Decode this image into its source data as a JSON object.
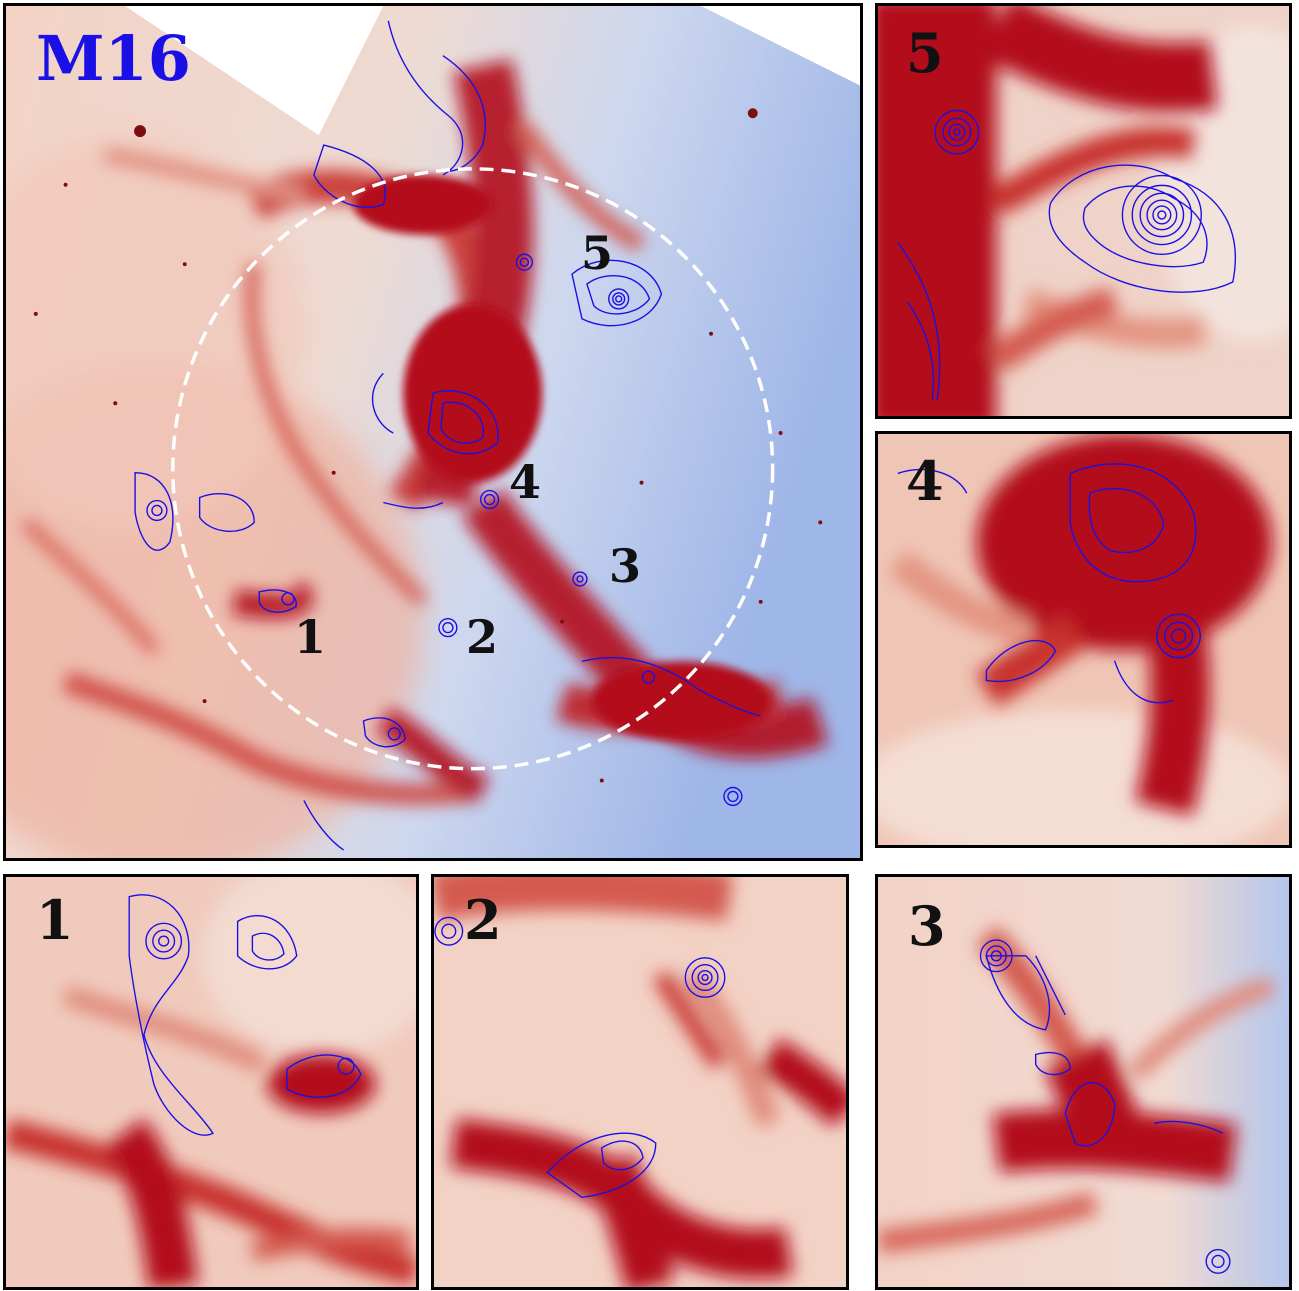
{
  "main": {
    "title": "M16",
    "regions": [
      {
        "label": "1"
      },
      {
        "label": "2"
      },
      {
        "label": "3"
      },
      {
        "label": "4"
      },
      {
        "label": "5"
      }
    ]
  },
  "insets": {
    "one": {
      "label": "1"
    },
    "two": {
      "label": "2"
    },
    "three": {
      "label": "3"
    },
    "four": {
      "label": "4"
    },
    "five": {
      "label": "5"
    }
  },
  "colors": {
    "contour": "#1a10e6",
    "dust_dark": "#b30d1c",
    "dust_mid": "#e07a6c",
    "dust_light": "#f4cfc0",
    "background_blue": "#a9c0ec",
    "circle": "#ffffff"
  }
}
